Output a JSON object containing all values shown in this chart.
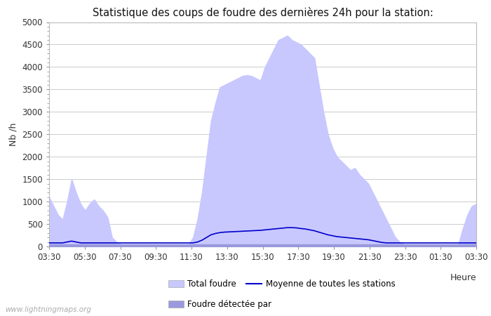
{
  "title": "Statistique des coups de foudre des dernières 24h pour la station:",
  "xlabel": "Heure",
  "ylabel": "Nb /h",
  "watermark": "www.lightningmaps.org",
  "x_ticks": [
    "03:30",
    "05:30",
    "07:30",
    "09:30",
    "11:30",
    "13:30",
    "15:30",
    "17:30",
    "19:30",
    "21:30",
    "23:30",
    "01:30",
    "03:30"
  ],
  "ylim": [
    0,
    5000
  ],
  "yticks": [
    0,
    500,
    1000,
    1500,
    2000,
    2500,
    3000,
    3500,
    4000,
    4500,
    5000
  ],
  "total_foudre_color": "#c8c8ff",
  "foudre_detectee_color": "#9999dd",
  "moyenne_color": "#0000cc",
  "background_color": "#ffffff",
  "grid_color": "#cccccc",
  "legend_items": [
    "Total foudre",
    "Foudre détectée par",
    "Moyenne de toutes les stations"
  ],
  "total_foudre_values": [
    1100,
    900,
    700,
    600,
    1000,
    1500,
    1200,
    950,
    800,
    950,
    1050,
    900,
    800,
    650,
    200,
    100,
    50,
    50,
    50,
    50,
    50,
    50,
    50,
    50,
    50,
    50,
    50,
    50,
    50,
    50,
    50,
    50,
    200,
    600,
    1200,
    2000,
    2800,
    3200,
    3550,
    3600,
    3650,
    3700,
    3750,
    3800,
    3820,
    3800,
    3750,
    3700,
    4000,
    4200,
    4400,
    4600,
    4650,
    4700,
    4600,
    4550,
    4500,
    4400,
    4300,
    4200,
    3600,
    3000,
    2500,
    2200,
    2000,
    1900,
    1800,
    1700,
    1750,
    1600,
    1500,
    1400,
    1200,
    1000,
    800,
    600,
    400,
    200,
    100,
    50,
    50,
    50,
    50,
    50,
    50,
    50,
    50,
    50,
    50,
    50,
    50,
    50,
    400,
    700,
    900,
    950
  ],
  "foudre_detectee_values": [
    50,
    50,
    50,
    50,
    50,
    50,
    50,
    50,
    50,
    50,
    50,
    50,
    50,
    50,
    50,
    50,
    50,
    50,
    50,
    50,
    50,
    50,
    50,
    50,
    50,
    50,
    50,
    50,
    50,
    50,
    50,
    50,
    50,
    50,
    50,
    50,
    50,
    50,
    50,
    50,
    50,
    50,
    50,
    50,
    50,
    50,
    50,
    50,
    50,
    50,
    50,
    50,
    50,
    50,
    50,
    50,
    50,
    50,
    50,
    50,
    50,
    50,
    50,
    50,
    50,
    50,
    50,
    50,
    50,
    50,
    50,
    50,
    50,
    50,
    50,
    50,
    50,
    50,
    50,
    50,
    50,
    50,
    50,
    50,
    50,
    50,
    50,
    50,
    50,
    50,
    50,
    50,
    50,
    50,
    50,
    50
  ],
  "moyenne_values": [
    80,
    80,
    80,
    80,
    100,
    120,
    100,
    80,
    80,
    80,
    80,
    80,
    80,
    80,
    80,
    80,
    80,
    80,
    80,
    80,
    80,
    80,
    80,
    80,
    80,
    80,
    80,
    80,
    80,
    80,
    80,
    80,
    80,
    100,
    140,
    200,
    260,
    290,
    310,
    320,
    325,
    330,
    335,
    340,
    345,
    350,
    355,
    360,
    370,
    380,
    390,
    400,
    410,
    420,
    420,
    415,
    400,
    390,
    370,
    350,
    320,
    290,
    260,
    240,
    220,
    210,
    200,
    190,
    180,
    170,
    160,
    150,
    130,
    110,
    90,
    80,
    80,
    80,
    80,
    80,
    80,
    80,
    80,
    80,
    80,
    80,
    80,
    80,
    80,
    80,
    80,
    80,
    80,
    80,
    80,
    80
  ]
}
